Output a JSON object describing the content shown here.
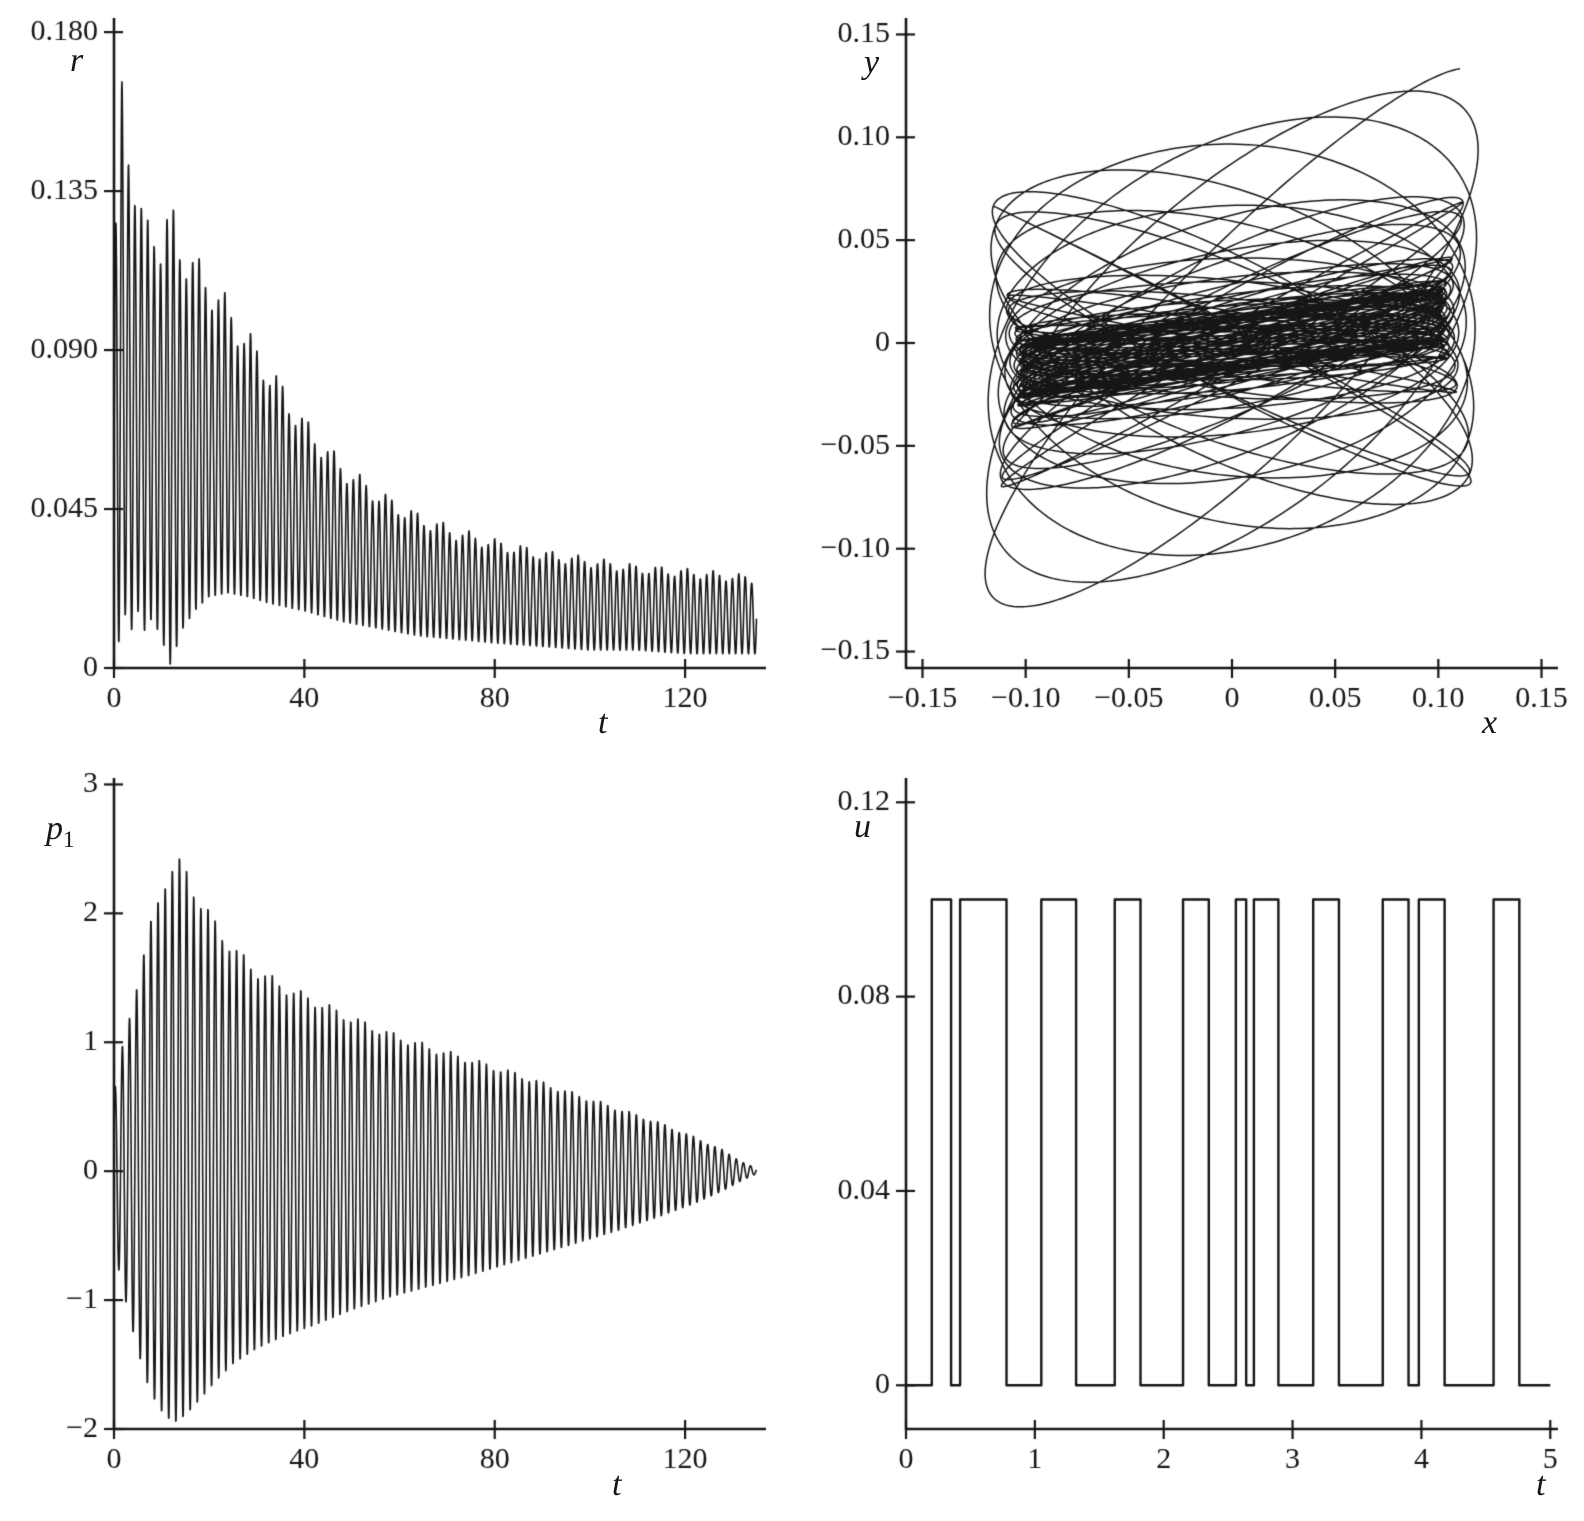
{
  "figure": {
    "background": "#ffffff",
    "line_color": "#161616",
    "description": "Four-panel black-and-white simulation results figure"
  },
  "chart_data": [
    {
      "id": "r-vs-t",
      "type": "line",
      "title": "",
      "xlabel": "t",
      "ylabel": "r",
      "xlim": [
        0,
        137
      ],
      "ylim": [
        0,
        0.184
      ],
      "xticks": [
        0,
        40,
        80,
        120
      ],
      "xtick_labels": [
        "0",
        "40",
        "80",
        "120"
      ],
      "yticks": [
        0,
        0.045,
        0.09,
        0.135,
        0.18
      ],
      "ytick_labels": [
        "0",
        "0.045",
        "0.090",
        "0.135",
        "0.180"
      ],
      "grid": false,
      "legend": null,
      "series": [
        {
          "name": "r(t) amplitude with fast oscillations and decaying envelope",
          "kind": "oscillation",
          "mode": "band",
          "width": 1.6,
          "period": 1.35,
          "phase": 0,
          "t_range": [
            0,
            135
          ],
          "mod": {
            "depth": 0.05,
            "period": 5.7,
            "phase": 1.0
          },
          "envelope_t": [
            0,
            0.8,
            1.6,
            2.4,
            3.2,
            4,
            5,
            6.5,
            8,
            10,
            12,
            14,
            17,
            20,
            24,
            28,
            33,
            40,
            48,
            56,
            64,
            72,
            80,
            90,
            100,
            110,
            120,
            128,
            135
          ],
          "envelope_upper": [
            0.1,
            0.145,
            0.166,
            0.14,
            0.152,
            0.138,
            0.128,
            0.122,
            0.126,
            0.118,
            0.127,
            0.118,
            0.112,
            0.108,
            0.1,
            0.092,
            0.082,
            0.068,
            0.056,
            0.048,
            0.042,
            0.038,
            0.035,
            0.032,
            0.03,
            0.028,
            0.027,
            0.026,
            0.025
          ],
          "envelope_lower": [
            0.012,
            0.006,
            0.01,
            0.015,
            0.008,
            0.012,
            0.016,
            0.01,
            0.014,
            0.008,
            0.0,
            0.01,
            0.016,
            0.02,
            0.021,
            0.02,
            0.018,
            0.016,
            0.013,
            0.011,
            0.009,
            0.008,
            0.007,
            0.006,
            0.005,
            0.005,
            0.004,
            0.004,
            0.004
          ]
        }
      ]
    },
    {
      "id": "y-vs-x-phase-portrait",
      "type": "line",
      "title": "",
      "xlabel": "x",
      "ylabel": "y",
      "xlim": [
        -0.158,
        0.158
      ],
      "ylim": [
        -0.158,
        0.158
      ],
      "xticks": [
        -0.15,
        -0.1,
        -0.05,
        0,
        0.05,
        0.1,
        0.15
      ],
      "xtick_labels": [
        "−0.15",
        "−0.10",
        "−0.05",
        "0",
        "0.05",
        "0.10",
        "0.15"
      ],
      "yticks": [
        -0.15,
        -0.1,
        -0.05,
        0,
        0.05,
        0.1,
        0.15
      ],
      "ytick_labels": [
        "−0.15",
        "−0.10",
        "−0.05",
        "0",
        "0.05",
        "0.10",
        "0.15"
      ],
      "grid": false,
      "legend": null,
      "series": [
        {
          "name": "spiralling precessing elliptic trajectory converging to a slanted dense core",
          "kind": "precessing_ellipse",
          "width": 1.5,
          "s_max": 520,
          "ds": 0.025,
          "ax_base": 0.1,
          "ax_amp": 0.02,
          "ax_tau": 160,
          "ay_base": 0.011,
          "ay_amp": 0.108,
          "ay_tau": 95,
          "wx": 1.0,
          "phx": 0.4,
          "wy": 0.932,
          "phy": 0.0,
          "shear": 0.13
        }
      ]
    },
    {
      "id": "p1-vs-t",
      "type": "line",
      "title": "",
      "xlabel": "t",
      "ylabel": "p",
      "ylabel_sub": "1",
      "xlim": [
        0,
        137
      ],
      "ylim": [
        -2,
        3.05
      ],
      "xticks": [
        0,
        40,
        80,
        120
      ],
      "xtick_labels": [
        "0",
        "40",
        "80",
        "120"
      ],
      "yticks": [
        -2,
        -1,
        0,
        1,
        2,
        3
      ],
      "ytick_labels": [
        "−2",
        "−1",
        "0",
        "1",
        "2",
        "3"
      ],
      "grid": false,
      "legend": null,
      "series": [
        {
          "name": "p1(t) oscillation, envelope grows to max 2.4 near t=13 then decays to ~0 at t=135",
          "kind": "oscillation",
          "mode": "bipolar",
          "width": 1.6,
          "period": 1.5,
          "phase": 0.5,
          "t_range": [
            0,
            135
          ],
          "mod": {
            "depth": 0.03,
            "period": 6.3,
            "phase": 0.0
          },
          "envelope_t": [
            0,
            1.5,
            3,
            5,
            7,
            9,
            11,
            13,
            15,
            18,
            21,
            25,
            30,
            36,
            42,
            50,
            58,
            66,
            74,
            82,
            90,
            98,
            106,
            114,
            122,
            128,
            132,
            135
          ],
          "envelope_upper": [
            0.6,
            0.9,
            1.15,
            1.5,
            1.8,
            2.05,
            2.3,
            2.4,
            2.32,
            2.1,
            1.92,
            1.72,
            1.55,
            1.42,
            1.32,
            1.18,
            1.06,
            0.96,
            0.87,
            0.78,
            0.68,
            0.58,
            0.48,
            0.38,
            0.26,
            0.16,
            0.07,
            0.02
          ],
          "envelope_lower": [
            0.6,
            0.85,
            1.1,
            1.4,
            1.65,
            1.82,
            1.92,
            1.95,
            1.9,
            1.78,
            1.65,
            1.5,
            1.38,
            1.28,
            1.2,
            1.08,
            0.98,
            0.9,
            0.82,
            0.73,
            0.64,
            0.55,
            0.46,
            0.36,
            0.25,
            0.15,
            0.07,
            0.02
          ]
        }
      ]
    },
    {
      "id": "u-vs-t-control",
      "type": "line",
      "title": "",
      "xlabel": "t",
      "ylabel": "u",
      "xlim": [
        0,
        5.06
      ],
      "ylim": [
        -0.009,
        0.125
      ],
      "xticks": [
        0,
        1,
        2,
        3,
        4,
        5
      ],
      "xtick_labels": [
        "0",
        "1",
        "2",
        "3",
        "4",
        "5"
      ],
      "yticks": [
        0,
        0.04,
        0.08,
        0.12
      ],
      "ytick_labels": [
        "0",
        "0.04",
        "0.08",
        "0.12"
      ],
      "grid": false,
      "legend": null,
      "series": [
        {
          "name": "bang-bang control u(t) switching between 0 and 0.1",
          "kind": "step",
          "width": 2.4,
          "low": 0,
          "high": 0.1,
          "t_range": [
            0,
            5
          ],
          "high_intervals": [
            [
              0.2,
              0.35
            ],
            [
              0.42,
              0.78
            ],
            [
              1.05,
              1.32
            ],
            [
              1.62,
              1.82
            ],
            [
              2.15,
              2.35
            ],
            [
              2.56,
              2.64
            ],
            [
              2.7,
              2.89
            ],
            [
              3.16,
              3.36
            ],
            [
              3.7,
              3.9
            ],
            [
              3.98,
              4.18
            ],
            [
              4.56,
              4.76
            ]
          ]
        }
      ]
    }
  ]
}
